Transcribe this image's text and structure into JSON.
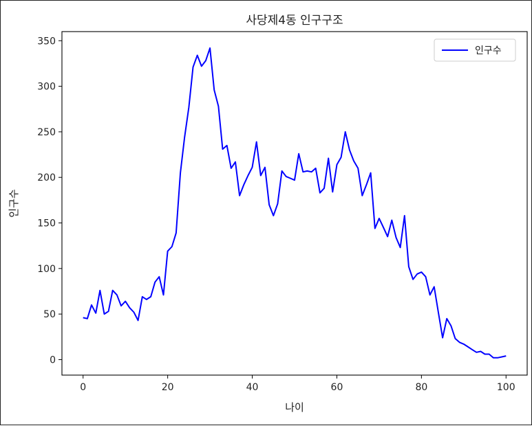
{
  "chart_data": {
    "type": "line",
    "title": "사당제4동 인구구조",
    "xlabel": "나이",
    "ylabel": "인구수",
    "xlim": [
      -5,
      105
    ],
    "ylim": [
      -17,
      360
    ],
    "xticks": [
      0,
      20,
      40,
      60,
      80,
      100
    ],
    "yticks": [
      0,
      50,
      100,
      150,
      200,
      250,
      300,
      350
    ],
    "grid": false,
    "legend_position": "top-right",
    "series": [
      {
        "name": "인구수",
        "color": "#0000ff",
        "x": [
          0,
          1,
          2,
          3,
          4,
          5,
          6,
          7,
          8,
          9,
          10,
          11,
          12,
          13,
          14,
          15,
          16,
          17,
          18,
          19,
          20,
          21,
          22,
          23,
          24,
          25,
          26,
          27,
          28,
          29,
          30,
          31,
          32,
          33,
          34,
          35,
          36,
          37,
          38,
          39,
          40,
          41,
          42,
          43,
          44,
          45,
          46,
          47,
          48,
          49,
          50,
          51,
          52,
          53,
          54,
          55,
          56,
          57,
          58,
          59,
          60,
          61,
          62,
          63,
          64,
          65,
          66,
          67,
          68,
          69,
          70,
          71,
          72,
          73,
          74,
          75,
          76,
          77,
          78,
          79,
          80,
          81,
          82,
          83,
          84,
          85,
          86,
          87,
          88,
          89,
          90,
          91,
          92,
          93,
          94,
          95,
          96,
          97,
          98,
          99,
          100
        ],
        "values": [
          46,
          45,
          60,
          51,
          76,
          50,
          53,
          76,
          71,
          59,
          64,
          57,
          52,
          43,
          69,
          66,
          69,
          85,
          91,
          71,
          119,
          124,
          139,
          205,
          244,
          277,
          321,
          334,
          322,
          328,
          342,
          296,
          278,
          231,
          235,
          210,
          217,
          180,
          192,
          202,
          211,
          239,
          202,
          211,
          170,
          158,
          171,
          207,
          201,
          199,
          197,
          226,
          206,
          207,
          206,
          210,
          183,
          188,
          221,
          184,
          214,
          222,
          250,
          230,
          218,
          210,
          180,
          192,
          205,
          144,
          155,
          145,
          135,
          153,
          134,
          123,
          158,
          102,
          88,
          94,
          96,
          91,
          71,
          80,
          52,
          24,
          45,
          37,
          23,
          19,
          17,
          14,
          11,
          8,
          9,
          6,
          6,
          2,
          2,
          3,
          4
        ]
      }
    ]
  }
}
